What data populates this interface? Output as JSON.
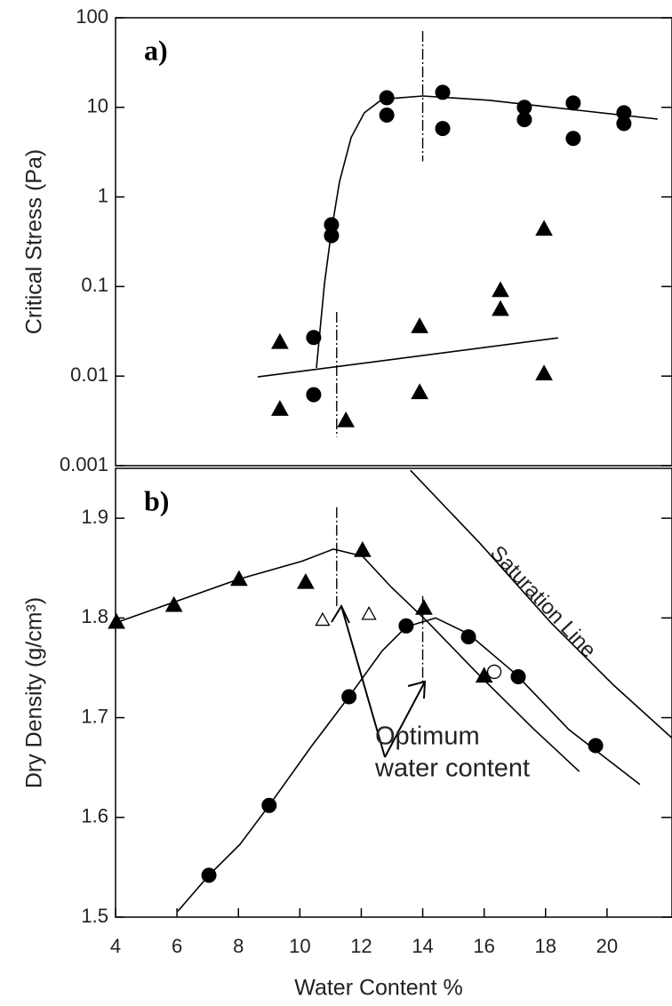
{
  "chart_data": [
    {
      "type": "scatter",
      "panel_label": "a)",
      "ylabel": "Critical Stress (Pa)",
      "log_y": true,
      "xlim": [
        4,
        22
      ],
      "ylim": [
        0.001,
        100
      ],
      "yticks": [
        100,
        10,
        1,
        0.1,
        0.01,
        0.001
      ],
      "series": [
        {
          "kind": "points",
          "marker": "circle",
          "filled": true,
          "color": "#000000",
          "x": [
            12.83,
            12.83,
            14.65,
            14.65,
            17.31,
            17.31,
            18.9,
            18.9,
            20.55,
            20.55,
            11.03,
            11.03,
            10.45,
            10.45
          ],
          "values": [
            12.8,
            8.2,
            14.7,
            5.8,
            10,
            7.3,
            11.2,
            4.5,
            8.7,
            6.6,
            0.49,
            0.37,
            0.027,
            0.0062
          ]
        },
        {
          "kind": "points",
          "marker": "triangle",
          "filled": true,
          "color": "#000000",
          "x": [
            9.35,
            9.35,
            11.5,
            13.9,
            13.9,
            16.53,
            16.53,
            17.95,
            17.95
          ],
          "values": [
            0.024,
            0.0043,
            0.0032,
            0.036,
            0.0066,
            0.091,
            0.056,
            0.44,
            0.0107
          ]
        },
        {
          "kind": "line",
          "color": "#000000",
          "x": [
            10.54,
            10.8,
            11.03,
            11.29,
            11.67,
            12.1,
            12.68,
            14.0,
            16.15,
            19.05,
            21.65
          ],
          "values": [
            0.0123,
            0.107,
            0.42,
            1.47,
            4.6,
            8.7,
            12.3,
            13.4,
            12.0,
            9.3,
            7.4
          ]
        },
        {
          "kind": "line",
          "color": "#000000",
          "x": [
            8.63,
            18.41
          ],
          "values": [
            0.0098,
            0.0267
          ]
        }
      ],
      "vlines": [
        {
          "x": 14,
          "y": [
            71,
            2.5
          ]
        },
        {
          "x": 11.2,
          "y": [
            0.052,
            0.0021
          ]
        }
      ]
    },
    {
      "type": "scatter",
      "panel_label": "b)",
      "ylabel": "Dry Density (g/cm³)",
      "xlabel": "Water Content %",
      "xlim": [
        4,
        22
      ],
      "ylim": [
        1.5,
        1.95
      ],
      "yticks": [
        1.5,
        1.6,
        1.7,
        1.8,
        1.9
      ],
      "xticks": [
        4,
        6,
        8,
        10,
        12,
        14,
        16,
        18,
        20
      ],
      "series": [
        {
          "kind": "points",
          "marker": "triangle",
          "filled": true,
          "color": "#000000",
          "x": [
            4.03,
            5.9,
            8.02,
            10.19,
            12.04,
            14.04,
            16.0
          ],
          "values": [
            1.796,
            1.813,
            1.839,
            1.836,
            1.868,
            1.81,
            1.742
          ]
        },
        {
          "kind": "points",
          "marker": "triangle",
          "filled": false,
          "color": "#000000",
          "x": [
            10.74,
            12.25
          ],
          "values": [
            1.798,
            1.804
          ]
        },
        {
          "kind": "points",
          "marker": "circle",
          "filled": false,
          "color": "#000000",
          "x": [
            16.33
          ],
          "values": [
            1.746
          ]
        },
        {
          "kind": "points",
          "marker": "circle",
          "filled": true,
          "color": "#000000",
          "x": [
            7.04,
            9.0,
            11.6,
            13.46,
            15.49,
            17.11,
            19.63
          ],
          "values": [
            1.542,
            1.612,
            1.721,
            1.792,
            1.781,
            1.741,
            1.672
          ]
        },
        {
          "kind": "line",
          "color": "#000000",
          "x": [
            4,
            8.02,
            10.08,
            11.09,
            12.04,
            12.97,
            14.13,
            15.86,
            17.6,
            19.1
          ],
          "values": [
            1.795,
            1.839,
            1.857,
            1.869,
            1.862,
            1.831,
            1.797,
            1.742,
            1.689,
            1.646
          ]
        },
        {
          "kind": "line",
          "color": "#000000",
          "x": [
            6.03,
            7.04,
            8.05,
            9.0,
            10.37,
            11.6,
            12.68,
            13.46,
            14.42,
            15.49,
            17.02,
            18.76,
            21.07
          ],
          "values": [
            1.506,
            1.542,
            1.573,
            1.612,
            1.671,
            1.721,
            1.767,
            1.791,
            1.8,
            1.784,
            1.744,
            1.688,
            1.633
          ]
        },
        {
          "kind": "line",
          "color": "#000000",
          "x": [
            13.6,
            15.86,
            18.18,
            20.2,
            22.1
          ],
          "values": [
            1.948,
            1.875,
            1.795,
            1.733,
            1.68
          ]
        }
      ],
      "vlines": [
        {
          "x": 11.2,
          "y": [
            1.911,
            1.812
          ]
        },
        {
          "x": 14,
          "y": [
            1.822,
            1.734
          ]
        }
      ],
      "saturation_label": "Saturation Line",
      "optimum_label": [
        "Optimum",
        "water content"
      ]
    }
  ]
}
